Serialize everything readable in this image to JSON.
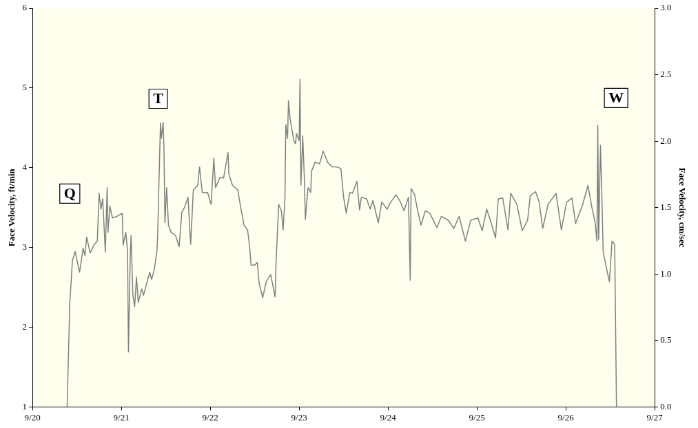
{
  "chart_data": {
    "type": "line",
    "ylabel": "Face Velocity, ft/min",
    "y2label": "Face Velocity, cm/sec",
    "xlim": [
      "--09-20T00:00",
      "--09-27T00:00"
    ],
    "xticks": [
      {
        "value": "--09-20T00:00",
        "label": "9/20"
      },
      {
        "value": "--09-21T00:00",
        "label": "9/21"
      },
      {
        "value": "--09-22T00:00",
        "label": "9/22"
      },
      {
        "value": "--09-23T00:00",
        "label": "9/23"
      },
      {
        "value": "--09-24T00:00",
        "label": "9/24"
      },
      {
        "value": "--09-25T00:00",
        "label": "9/25"
      },
      {
        "value": "--09-26T00:00",
        "label": "9/26"
      },
      {
        "value": "--09-27T00:00",
        "label": "9/27"
      }
    ],
    "ylim": [
      1,
      6
    ],
    "yticks": [
      1,
      2,
      3,
      4,
      5,
      6
    ],
    "y2lim": [
      0,
      3
    ],
    "y2ticks": [
      {
        "value": 0,
        "label": "0.0"
      },
      {
        "value": 0.5,
        "label": "0.5"
      },
      {
        "value": 1,
        "label": "1.0"
      },
      {
        "value": 1.5,
        "label": "1.5"
      },
      {
        "value": 2,
        "label": "2.0"
      },
      {
        "value": 2.5,
        "label": "2.5"
      },
      {
        "value": 3,
        "label": "3.0"
      }
    ],
    "grid": false,
    "legend": false,
    "marker": "none",
    "line_style": "solid",
    "annotations": [
      "Q",
      "T",
      "W"
    ],
    "series": [
      {
        "color": "#808080",
        "x": [
          "--09-20T09:22",
          "--09-20T10:05",
          "--09-20T10:48",
          "--09-20T11:31",
          "--09-20T12:43",
          "--09-20T13:41",
          "--09-20T14:10",
          "--09-20T14:38",
          "--09-20T15:36",
          "--09-20T16:34",
          "--09-20T17:31",
          "--09-20T18:00",
          "--09-20T18:29",
          "--09-20T18:58",
          "--09-20T19:41",
          "--09-20T20:10",
          "--09-20T20:24",
          "--09-20T20:53",
          "--09-20T21:36",
          "--09-20T22:48",
          "--09-21T00:14",
          "--09-21T00:29",
          "--09-21T01:12",
          "--09-21T01:41",
          "--09-21T01:55",
          "--09-21T02:24",
          "--09-21T02:38",
          "--09-21T03:07",
          "--09-21T03:36",
          "--09-21T04:05",
          "--09-21T04:34",
          "--09-21T05:31",
          "--09-21T06:00",
          "--09-21T06:58",
          "--09-21T07:41",
          "--09-21T08:10",
          "--09-21T08:53",
          "--09-21T09:36",
          "--09-21T09:50",
          "--09-21T10:05",
          "--09-21T10:34",
          "--09-21T10:48",
          "--09-21T11:17",
          "--09-21T11:31",
          "--09-21T11:46",
          "--09-21T12:14",
          "--09-21T12:43",
          "--09-21T13:26",
          "--09-21T14:38",
          "--09-21T15:36",
          "--09-21T16:19",
          "--09-21T17:02",
          "--09-21T18:00",
          "--09-21T18:43",
          "--09-21T19:26",
          "--09-21T20:38",
          "--09-21T21:07",
          "--09-21T21:50",
          "--09-21T23:17",
          "--09-22T00:14",
          "--09-22T00:58",
          "--09-22T01:26",
          "--09-22T02:38",
          "--09-22T03:36",
          "--09-22T04:48",
          "--09-22T05:02",
          "--09-22T06:00",
          "--09-22T07:26",
          "--09-22T08:10",
          "--09-22T09:07",
          "--09-22T10:05",
          "--09-22T10:34",
          "--09-22T11:02",
          "--09-22T12:00",
          "--09-22T12:43",
          "--09-22T13:12",
          "--09-22T14:10",
          "--09-22T15:07",
          "--09-22T16:19",
          "--09-22T17:31",
          "--09-22T17:46",
          "--09-22T18:29",
          "--09-22T19:12",
          "--09-22T19:41",
          "--09-22T20:10",
          "--09-22T20:24",
          "--09-22T20:53",
          "--09-22T21:07",
          "--09-22T21:36",
          "--09-22T22:34",
          "--09-22T23:02",
          "--09-22T23:17",
          "--09-23T00:00",
          "--09-23T00:14",
          "--09-23T00:29",
          "--09-23T00:58",
          "--09-23T01:26",
          "--09-23T01:41",
          "--09-23T02:24",
          "--09-23T03:07",
          "--09-23T03:22",
          "--09-23T04:19",
          "--09-23T05:31",
          "--09-23T06:29",
          "--09-23T07:41",
          "--09-23T08:53",
          "--09-23T10:05",
          "--09-23T11:17",
          "--09-23T12:00",
          "--09-23T12:43",
          "--09-23T13:41",
          "--09-23T14:24",
          "--09-23T15:36",
          "--09-23T16:19",
          "--09-23T16:48",
          "--09-23T18:14",
          "--09-23T19:12",
          "--09-23T19:55",
          "--09-23T21:22",
          "--09-23T22:19",
          "--09-23T23:46",
          "--09-24T00:43",
          "--09-24T02:10",
          "--09-24T03:22",
          "--09-24T04:19",
          "--09-24T05:31",
          "--09-24T06:00",
          "--09-24T06:14",
          "--09-24T07:12",
          "--09-24T07:55",
          "--09-24T08:53",
          "--09-24T10:05",
          "--09-24T11:17",
          "--09-24T13:12",
          "--09-24T14:24",
          "--09-24T16:19",
          "--09-24T17:46",
          "--09-24T19:12",
          "--09-24T20:53",
          "--09-24T22:19",
          "--09-25T00:14",
          "--09-25T01:26",
          "--09-25T02:38",
          "--09-25T03:50",
          "--09-25T05:02",
          "--09-25T05:46",
          "--09-25T06:58",
          "--09-25T08:24",
          "--09-25T09:07",
          "--09-25T10:48",
          "--09-25T12:14",
          "--09-25T13:41",
          "--09-25T14:24",
          "--09-25T15:50",
          "--09-25T16:48",
          "--09-25T17:46",
          "--09-25T19:12",
          "--09-25T21:22",
          "--09-25T22:48",
          "--09-26T00:14",
          "--09-26T01:41",
          "--09-26T02:38",
          "--09-26T04:34",
          "--09-26T06:00",
          "--09-26T06:58",
          "--09-26T07:55",
          "--09-26T08:24",
          "--09-26T08:38",
          "--09-26T08:53",
          "--09-26T09:22",
          "--09-26T09:50",
          "--09-26T10:05",
          "--09-26T10:48",
          "--09-26T11:46",
          "--09-26T12:29",
          "--09-26T13:12",
          "--09-26T13:41"
        ],
        "values": [
          1.0,
          2.31,
          2.84,
          2.95,
          2.69,
          2.99,
          2.9,
          3.13,
          2.93,
          3.03,
          3.08,
          3.68,
          3.48,
          3.61,
          2.94,
          3.75,
          3.19,
          3.52,
          3.37,
          3.39,
          3.43,
          3.03,
          3.19,
          2.95,
          1.69,
          2.9,
          3.15,
          2.4,
          2.26,
          2.63,
          2.31,
          2.48,
          2.4,
          2.57,
          2.69,
          2.6,
          2.72,
          2.95,
          3.19,
          3.69,
          4.56,
          4.37,
          4.57,
          4.22,
          3.31,
          3.75,
          3.28,
          3.19,
          3.15,
          3.01,
          3.44,
          3.5,
          3.63,
          3.04,
          3.72,
          3.78,
          4.01,
          3.69,
          3.69,
          3.54,
          4.12,
          3.75,
          3.88,
          3.87,
          4.19,
          3.92,
          3.78,
          3.72,
          3.52,
          3.28,
          3.22,
          3.04,
          2.78,
          2.78,
          2.81,
          2.55,
          2.37,
          2.57,
          2.66,
          2.38,
          2.81,
          3.54,
          3.46,
          3.22,
          3.61,
          4.54,
          4.37,
          4.84,
          4.6,
          4.34,
          4.3,
          4.43,
          4.34,
          5.11,
          3.78,
          4.4,
          3.84,
          3.35,
          3.75,
          3.69,
          3.96,
          4.07,
          4.05,
          4.21,
          4.07,
          4.01,
          4.01,
          3.99,
          3.63,
          3.43,
          3.69,
          3.68,
          3.83,
          3.47,
          3.63,
          3.61,
          3.48,
          3.59,
          3.31,
          3.57,
          3.48,
          3.57,
          3.66,
          3.57,
          3.46,
          3.63,
          2.59,
          3.74,
          3.66,
          3.48,
          3.28,
          3.46,
          3.43,
          3.25,
          3.39,
          3.34,
          3.24,
          3.39,
          3.08,
          3.34,
          3.37,
          3.21,
          3.48,
          3.31,
          3.12,
          3.61,
          3.62,
          3.22,
          3.68,
          3.54,
          3.21,
          3.34,
          3.65,
          3.7,
          3.57,
          3.24,
          3.54,
          3.68,
          3.22,
          3.57,
          3.62,
          3.3,
          3.54,
          3.78,
          3.52,
          3.31,
          3.08,
          4.53,
          3.1,
          4.28,
          3.46,
          2.95,
          2.78,
          2.57,
          3.08,
          3.04,
          1.0
        ]
      }
    ]
  }
}
